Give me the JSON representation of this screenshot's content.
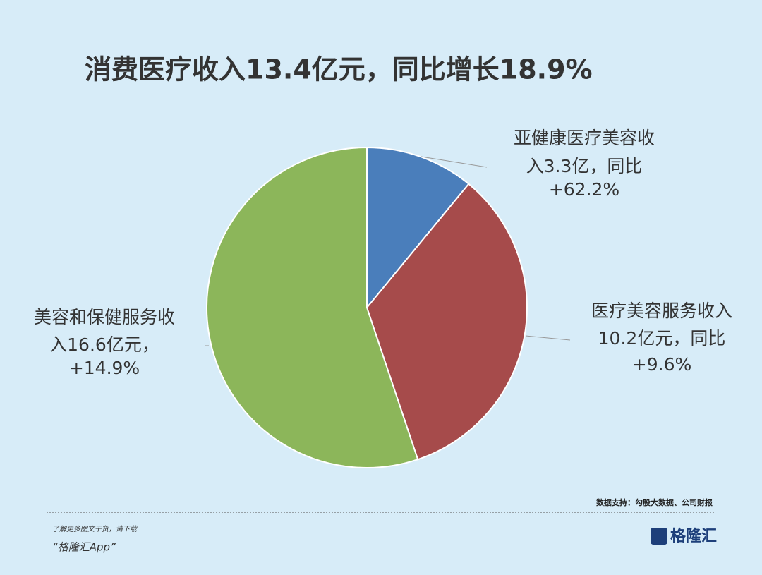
{
  "chart_data": {
    "type": "pie",
    "title": "消费医疗收入13.4亿元，同比增长18.9%",
    "labels": [
      [
        "亚健康医疗美容收",
        "入3.3亿，同比",
        "+62.2%"
      ],
      [
        "医疗美容服务收入",
        "10.2亿元，同比",
        "+9.6%"
      ],
      [
        "美容和保健服务收",
        "入16.6亿元，",
        "+14.9%"
      ]
    ],
    "values": [
      3.3,
      10.2,
      16.6
    ],
    "colors": [
      "#4a7ebb",
      "#a64b4b",
      "#8cb65a"
    ],
    "source": "数据支持：勾股大数据、公司财报"
  },
  "footer": {
    "line1": "了解更多图文干货，请下载",
    "line2": "“格隆汇App”",
    "logo": "格隆汇"
  }
}
